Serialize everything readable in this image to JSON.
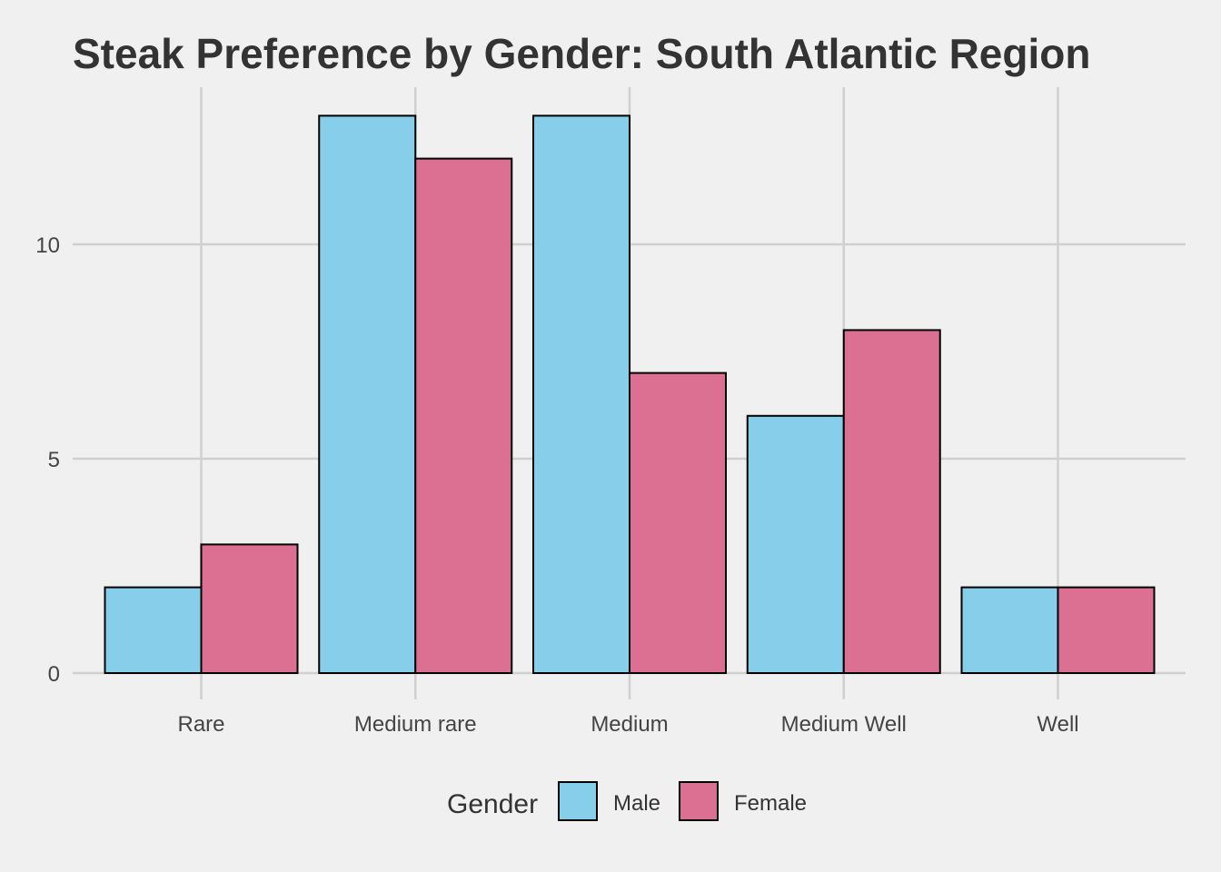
{
  "chart_data": {
    "type": "bar",
    "title": "Steak Preference by Gender: South Atlantic Region",
    "xlabel": "",
    "ylabel": "",
    "categories": [
      "Rare",
      "Medium rare",
      "Medium",
      "Medium Well",
      "Well"
    ],
    "series": [
      {
        "name": "Male",
        "color": "#87ceeb",
        "values": [
          2,
          13,
          13,
          6,
          2
        ]
      },
      {
        "name": "Female",
        "color": "#db7093",
        "values": [
          3,
          12,
          7,
          8,
          2
        ]
      }
    ],
    "ylim": [
      0,
      13.65
    ],
    "yticks": [
      0,
      5,
      10
    ],
    "grid": true,
    "legend": {
      "title": "Gender",
      "position": "bottom"
    }
  }
}
